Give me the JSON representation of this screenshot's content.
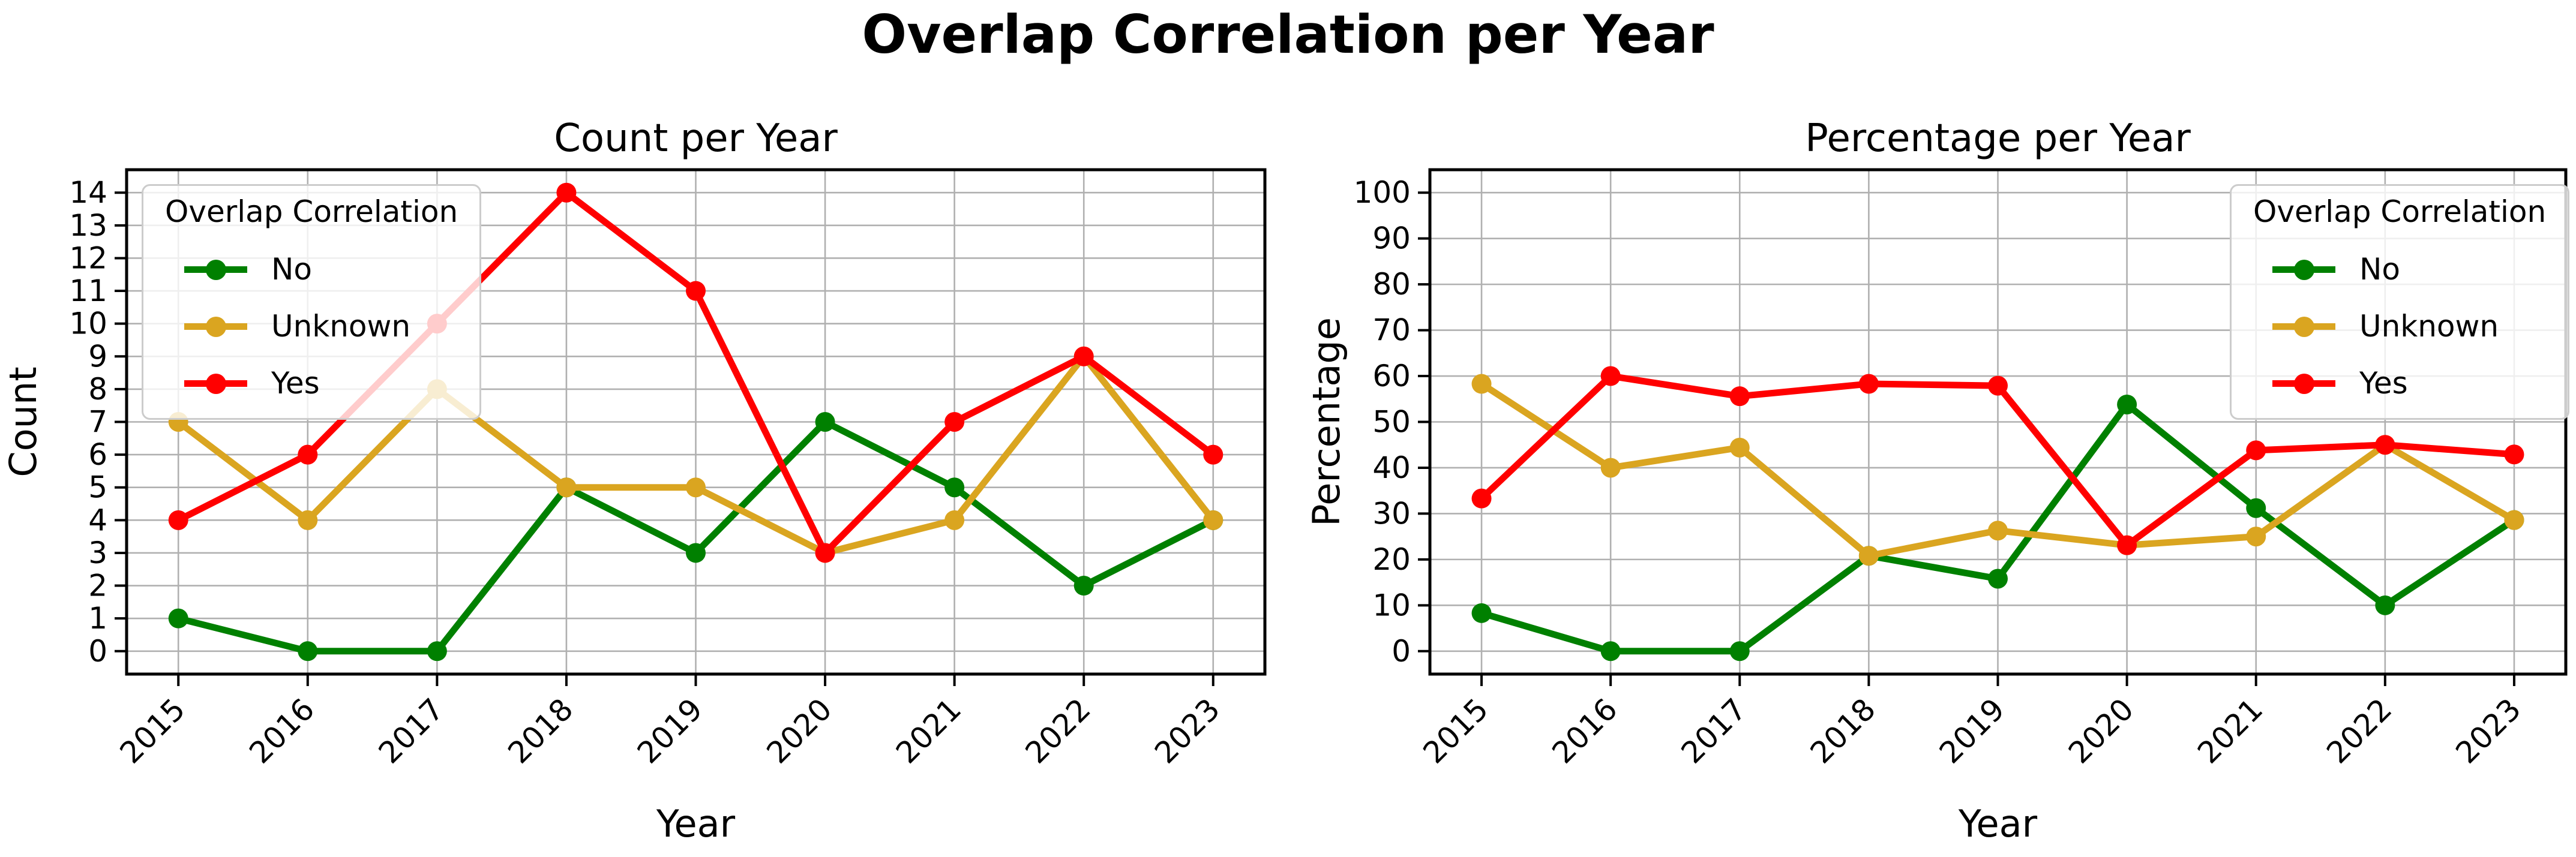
{
  "figure": {
    "suptitle": "Overlap Correlation per Year",
    "background_color": "#ffffff",
    "text_color": "#000000"
  },
  "legend": {
    "title": "Overlap Correlation",
    "entries": [
      {
        "label": "No",
        "color": "#008000"
      },
      {
        "label": "Unknown",
        "color": "#daa520"
      },
      {
        "label": "Yes",
        "color": "#ff0000"
      }
    ]
  },
  "style": {
    "grid_color": "#b0b0b0",
    "spine_color": "#000000",
    "tick_color": "#000000",
    "legend_border_color": "#cccccc"
  },
  "chart_data": [
    {
      "type": "line",
      "title": "Count per Year",
      "xlabel": "Year",
      "ylabel": "Count",
      "categories": [
        2015,
        2016,
        2017,
        2018,
        2019,
        2020,
        2021,
        2022,
        2023
      ],
      "series": [
        {
          "name": "No",
          "color": "#008000",
          "values": [
            1,
            0,
            0,
            5,
            3,
            7,
            5,
            2,
            4
          ]
        },
        {
          "name": "Unknown",
          "color": "#daa520",
          "values": [
            7,
            4,
            8,
            5,
            5,
            3,
            4,
            9,
            4
          ]
        },
        {
          "name": "Yes",
          "color": "#ff0000",
          "values": [
            4,
            6,
            10,
            14,
            11,
            3,
            7,
            9,
            6
          ]
        }
      ],
      "ylim": [
        0,
        14
      ],
      "yticks": [
        0,
        1,
        2,
        3,
        4,
        5,
        6,
        7,
        8,
        9,
        10,
        11,
        12,
        13,
        14
      ],
      "grid": true,
      "legend_position": "upper-left"
    },
    {
      "type": "line",
      "title": "Percentage per Year",
      "xlabel": "Year",
      "ylabel": "Percentage",
      "categories": [
        2015,
        2016,
        2017,
        2018,
        2019,
        2020,
        2021,
        2022,
        2023
      ],
      "series": [
        {
          "name": "No",
          "color": "#008000",
          "values": [
            8.3,
            0,
            0,
            20.8,
            15.8,
            53.8,
            31.2,
            10,
            28.6
          ]
        },
        {
          "name": "Unknown",
          "color": "#daa520",
          "values": [
            58.3,
            40,
            44.4,
            20.8,
            26.3,
            23.1,
            25,
            45,
            28.6
          ]
        },
        {
          "name": "Yes",
          "color": "#ff0000",
          "values": [
            33.3,
            60,
            55.6,
            58.3,
            57.9,
            23.1,
            43.8,
            45,
            42.9
          ]
        }
      ],
      "ylim": [
        0,
        100
      ],
      "yticks": [
        0,
        10,
        20,
        30,
        40,
        50,
        60,
        70,
        80,
        90,
        100
      ],
      "grid": true,
      "legend_position": "upper-right"
    }
  ]
}
